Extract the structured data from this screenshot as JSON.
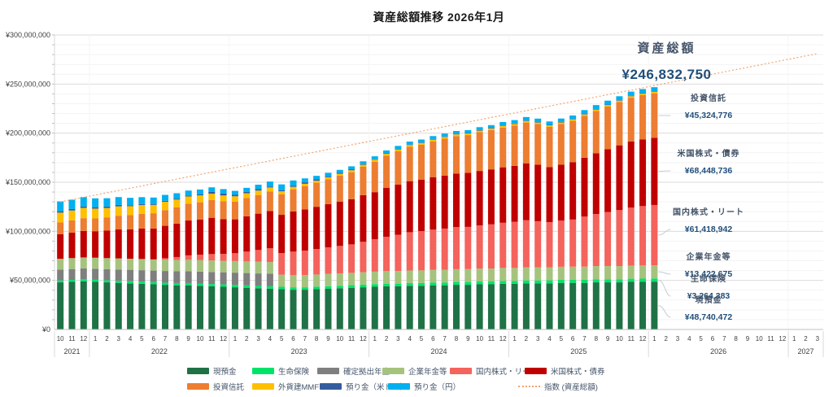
{
  "title": "資産総額推移 2026年1月",
  "y_axis": {
    "tick_labels": [
      "¥0",
      "¥50,000,000",
      "¥100,000,000",
      "¥150,000,000",
      "¥200,000,000",
      "¥250,000,000",
      "¥300,000,000"
    ],
    "max_millions": 300,
    "major_step_millions": 50,
    "minor_step_millions": 10
  },
  "x_axis": {
    "month_labels": [
      "10",
      "11",
      "12",
      "1",
      "2",
      "3",
      "4",
      "5",
      "6",
      "7",
      "8",
      "9",
      "10",
      "11",
      "12",
      "1",
      "2",
      "3",
      "4",
      "5",
      "6",
      "7",
      "8",
      "9",
      "10",
      "11",
      "12",
      "1",
      "2",
      "3",
      "4",
      "5",
      "6",
      "7",
      "8",
      "9",
      "10",
      "11",
      "12",
      "1",
      "2",
      "3",
      "4",
      "5",
      "6",
      "7",
      "8",
      "9",
      "10",
      "11",
      "12",
      "1",
      "2",
      "3",
      "4",
      "5",
      "6",
      "7",
      "8",
      "9",
      "10",
      "11",
      "12",
      "1",
      "2",
      "3"
    ],
    "year_groups": [
      {
        "label": "2021",
        "months": 3
      },
      {
        "label": "2022",
        "months": 12
      },
      {
        "label": "2023",
        "months": 12
      },
      {
        "label": "2024",
        "months": 12
      },
      {
        "label": "2025",
        "months": 12
      },
      {
        "label": "2026",
        "months": 12
      },
      {
        "label": "2027",
        "months": 3
      }
    ]
  },
  "chart_data": {
    "type": "bar",
    "stacked": true,
    "unit": "million JPY",
    "ylim_millions": [
      0,
      300
    ],
    "grid": true,
    "legend_position": "bottom",
    "periods": [
      "2021-10",
      "2021-11",
      "2021-12",
      "2022-01",
      "2022-02",
      "2022-03",
      "2022-04",
      "2022-05",
      "2022-06",
      "2022-07",
      "2022-08",
      "2022-09",
      "2022-10",
      "2022-11",
      "2022-12",
      "2023-01",
      "2023-02",
      "2023-03",
      "2023-04",
      "2023-05",
      "2023-06",
      "2023-07",
      "2023-08",
      "2023-09",
      "2023-10",
      "2023-11",
      "2023-12",
      "2024-01",
      "2024-02",
      "2024-03",
      "2024-04",
      "2024-05",
      "2024-06",
      "2024-07",
      "2024-08",
      "2024-09",
      "2024-10",
      "2024-11",
      "2024-12",
      "2025-01",
      "2025-02",
      "2025-03",
      "2025-04",
      "2025-05",
      "2025-06",
      "2025-07",
      "2025-08",
      "2025-09",
      "2025-10",
      "2025-11",
      "2025-12",
      "2026-01"
    ],
    "series": [
      {
        "name": "現預金",
        "color": "#1F7246",
        "values": [
          48,
          48.5,
          49,
          48.5,
          48,
          47.5,
          47,
          46.5,
          46,
          45.5,
          45,
          45,
          44.5,
          44,
          43.5,
          43,
          42.5,
          42,
          41.5,
          41,
          40.5,
          40.5,
          41,
          41.5,
          42,
          42.5,
          43,
          43.5,
          44,
          44,
          44.5,
          44.5,
          45,
          45,
          45.5,
          45.5,
          46,
          46,
          46.5,
          46.5,
          47,
          47,
          47,
          47.5,
          47.5,
          47.5,
          48,
          48,
          48,
          48.5,
          48.5,
          48.74
        ]
      },
      {
        "name": "生命保険",
        "color": "#00E36A",
        "values": [
          2,
          2,
          2.1,
          2.1,
          2.1,
          2.1,
          2.2,
          2.2,
          2.2,
          2.2,
          2.3,
          2.3,
          2.3,
          2.3,
          2.4,
          2.4,
          2.4,
          2.4,
          2.5,
          2.5,
          2.5,
          2.5,
          2.6,
          2.6,
          2.6,
          2.6,
          2.7,
          2.7,
          2.7,
          2.7,
          2.8,
          2.8,
          2.8,
          2.8,
          2.9,
          2.9,
          2.9,
          2.9,
          3,
          3,
          3,
          3,
          3.1,
          3.1,
          3.1,
          3.1,
          3.2,
          3.2,
          3.2,
          3.2,
          3.3,
          3.26
        ]
      },
      {
        "name": "確定拠出年金",
        "color": "#7F7F7F",
        "values": [
          11,
          11.1,
          11.2,
          11.3,
          11.4,
          11.5,
          11.6,
          11.7,
          11.8,
          11.9,
          12,
          12.1,
          12.2,
          12.3,
          12.4,
          12.5,
          12.6,
          12.7,
          12.8,
          0,
          0,
          0,
          0,
          0,
          0,
          0,
          0,
          0,
          0,
          0,
          0,
          0,
          0,
          0,
          0,
          0,
          0,
          0,
          0,
          0,
          0,
          0,
          0,
          0,
          0,
          0,
          0,
          0,
          0,
          0,
          0,
          0
        ]
      },
      {
        "name": "企業年金等",
        "color": "#A6C37E",
        "values": [
          11,
          11.1,
          11.1,
          11.2,
          11.2,
          11.3,
          11.3,
          11.4,
          11.4,
          11.5,
          11.5,
          11.6,
          11.6,
          11.7,
          11.7,
          11.8,
          11.8,
          11.9,
          11.9,
          12.3,
          12.3,
          12.4,
          12.4,
          12.5,
          12.5,
          12.6,
          12.6,
          12.7,
          12.7,
          12.8,
          12.8,
          12.9,
          12.9,
          13,
          13,
          13.1,
          13.1,
          13.2,
          13.2,
          13.2,
          13.3,
          13.3,
          13.3,
          13.3,
          13.4,
          13.4,
          13.4,
          13.4,
          13.4,
          13.4,
          13.4,
          13.42
        ]
      },
      {
        "name": "国内株式・リート",
        "color": "#F4635C",
        "values": [
          0,
          0,
          0,
          0,
          0,
          0,
          0,
          0,
          0,
          1.5,
          3,
          4.5,
          5.5,
          6.5,
          7,
          8,
          10,
          12,
          14,
          22,
          24,
          25,
          26,
          27,
          28,
          29,
          31,
          33,
          35,
          37,
          39,
          40,
          41,
          42,
          43,
          43,
          44,
          45,
          46,
          47,
          48,
          47,
          46,
          47,
          48,
          51,
          53,
          55,
          57,
          59,
          60.5,
          61.42
        ]
      },
      {
        "name": "米国株式・債券",
        "color": "#C00000",
        "values": [
          25,
          26,
          27,
          27,
          28,
          29.5,
          30,
          31,
          31.5,
          33,
          34,
          35.5,
          36,
          37,
          35.5,
          34.5,
          36,
          37,
          38,
          39,
          41,
          42,
          43,
          44,
          45,
          46,
          47.5,
          48,
          50,
          51,
          52,
          52.5,
          53.5,
          54,
          54.5,
          55,
          55.5,
          56,
          56.5,
          57,
          58,
          57.5,
          56,
          57,
          58.5,
          60,
          62,
          64,
          66,
          67.5,
          68,
          68.45
        ]
      },
      {
        "name": "投資信託",
        "color": "#ED7D31",
        "values": [
          12,
          12.5,
          13,
          13,
          13.5,
          14,
          14.5,
          15,
          15.5,
          16,
          16.5,
          17,
          17.5,
          18,
          18,
          18,
          18.5,
          19,
          20,
          21,
          22.5,
          23.5,
          24.5,
          25.5,
          26.5,
          27.5,
          29,
          31,
          32.5,
          34,
          35,
          35.5,
          36.5,
          37.5,
          38,
          38.5,
          39.5,
          40,
          40.5,
          41,
          41.5,
          41.5,
          41,
          41.5,
          42,
          42.5,
          43,
          43.5,
          44,
          44.5,
          45,
          45.32
        ]
      },
      {
        "name": "外貨建MMF",
        "color": "#FFC000",
        "values": [
          10,
          10,
          10.5,
          10,
          9.5,
          9.5,
          9,
          9,
          8.5,
          8.5,
          8,
          7.5,
          7,
          6.5,
          6,
          5.5,
          5,
          4.5,
          4,
          3,
          2.5,
          2.5,
          2,
          2,
          2,
          2,
          2,
          2,
          2,
          2,
          1.8,
          1.8,
          1.8,
          1.8,
          1.8,
          1.6,
          1.6,
          1.6,
          1.6,
          1.6,
          1.6,
          1.5,
          1.5,
          1.5,
          1.5,
          1.5,
          1.5,
          1.5,
          1.5,
          1.5,
          1.5,
          1.5
        ]
      },
      {
        "name": "預り金（米ドル）",
        "color": "#345D9D",
        "values": [
          1.5,
          1.5,
          1.5,
          1.5,
          1.5,
          1.5,
          1,
          1,
          1,
          1,
          1,
          1,
          1,
          2,
          2,
          1.5,
          1.5,
          1.5,
          1,
          1,
          1,
          1.5,
          1.5,
          1,
          1,
          1,
          0.5,
          0.5,
          0.5,
          0.5,
          0.5,
          0.5,
          0.5,
          0.5,
          0.5,
          0.5,
          0.5,
          0.5,
          0.5,
          0.5,
          0.5,
          0.5,
          0.5,
          0.5,
          0.5,
          0.5,
          0.5,
          0.5,
          0.5,
          0.5,
          0.5,
          0.55
        ]
      },
      {
        "name": "預り金（円）",
        "color": "#00B0F0",
        "values": [
          10,
          9.5,
          9.5,
          9,
          8.5,
          8,
          7.5,
          7,
          6.5,
          6,
          5.5,
          5,
          5,
          4.5,
          4.5,
          4,
          4,
          4.5,
          5,
          6,
          5.5,
          4,
          3.5,
          3.5,
          3,
          3,
          3,
          3,
          3,
          3,
          3,
          3,
          3,
          3,
          3,
          3,
          3,
          3,
          3.5,
          3.5,
          3.5,
          3.5,
          3.5,
          3.5,
          3.5,
          4,
          4,
          4,
          4,
          4.2,
          4.2,
          4.16
        ]
      }
    ],
    "index_line": {
      "name": "指数 (資産総額)",
      "color": "#F2A470",
      "style": "dotted",
      "start_period": "2021-10",
      "start_value_millions": 130,
      "end_period": "2027-03",
      "end_value_millions": 281
    }
  },
  "annotations": {
    "total": {
      "label": "資産総額",
      "value": "¥246,832,750"
    },
    "items": [
      {
        "series": "投資信託",
        "label": "投資信託",
        "value": "¥45,324,776"
      },
      {
        "series": "米国株式・債券",
        "label": "米国株式・債券",
        "value": "¥68,448,736"
      },
      {
        "series": "国内株式・リート",
        "label": "国内株式・リート",
        "value": "¥61,418,942"
      },
      {
        "series": "企業年金等",
        "label": "企業年金等",
        "value": "¥13,422,675"
      },
      {
        "series": "生命保険",
        "label": "生命保険",
        "value": "¥3,264,383"
      },
      {
        "series": "現預金",
        "label": "現預金",
        "value": "¥48,740,472"
      }
    ]
  },
  "legend": {
    "row1": [
      {
        "label": "現預金",
        "color": "#1F7246"
      },
      {
        "label": "生命保険",
        "color": "#00E36A"
      },
      {
        "label": "確定拠出年金",
        "color": "#7F7F7F"
      },
      {
        "label": "企業年金等",
        "color": "#A6C37E"
      },
      {
        "label": "国内株式・リート",
        "color": "#F4635C"
      },
      {
        "label": "米国株式・債券",
        "color": "#C00000"
      }
    ],
    "row2": [
      {
        "label": "投資信託",
        "color": "#ED7D31"
      },
      {
        "label": "外貨建MMF",
        "color": "#FFC000"
      },
      {
        "label": "預り金（米ドル）",
        "color": "#345D9D"
      },
      {
        "label": "預り金（円）",
        "color": "#00B0F0"
      }
    ],
    "index": {
      "label": "指数 (資産総額)",
      "color": "#F2A470"
    }
  }
}
